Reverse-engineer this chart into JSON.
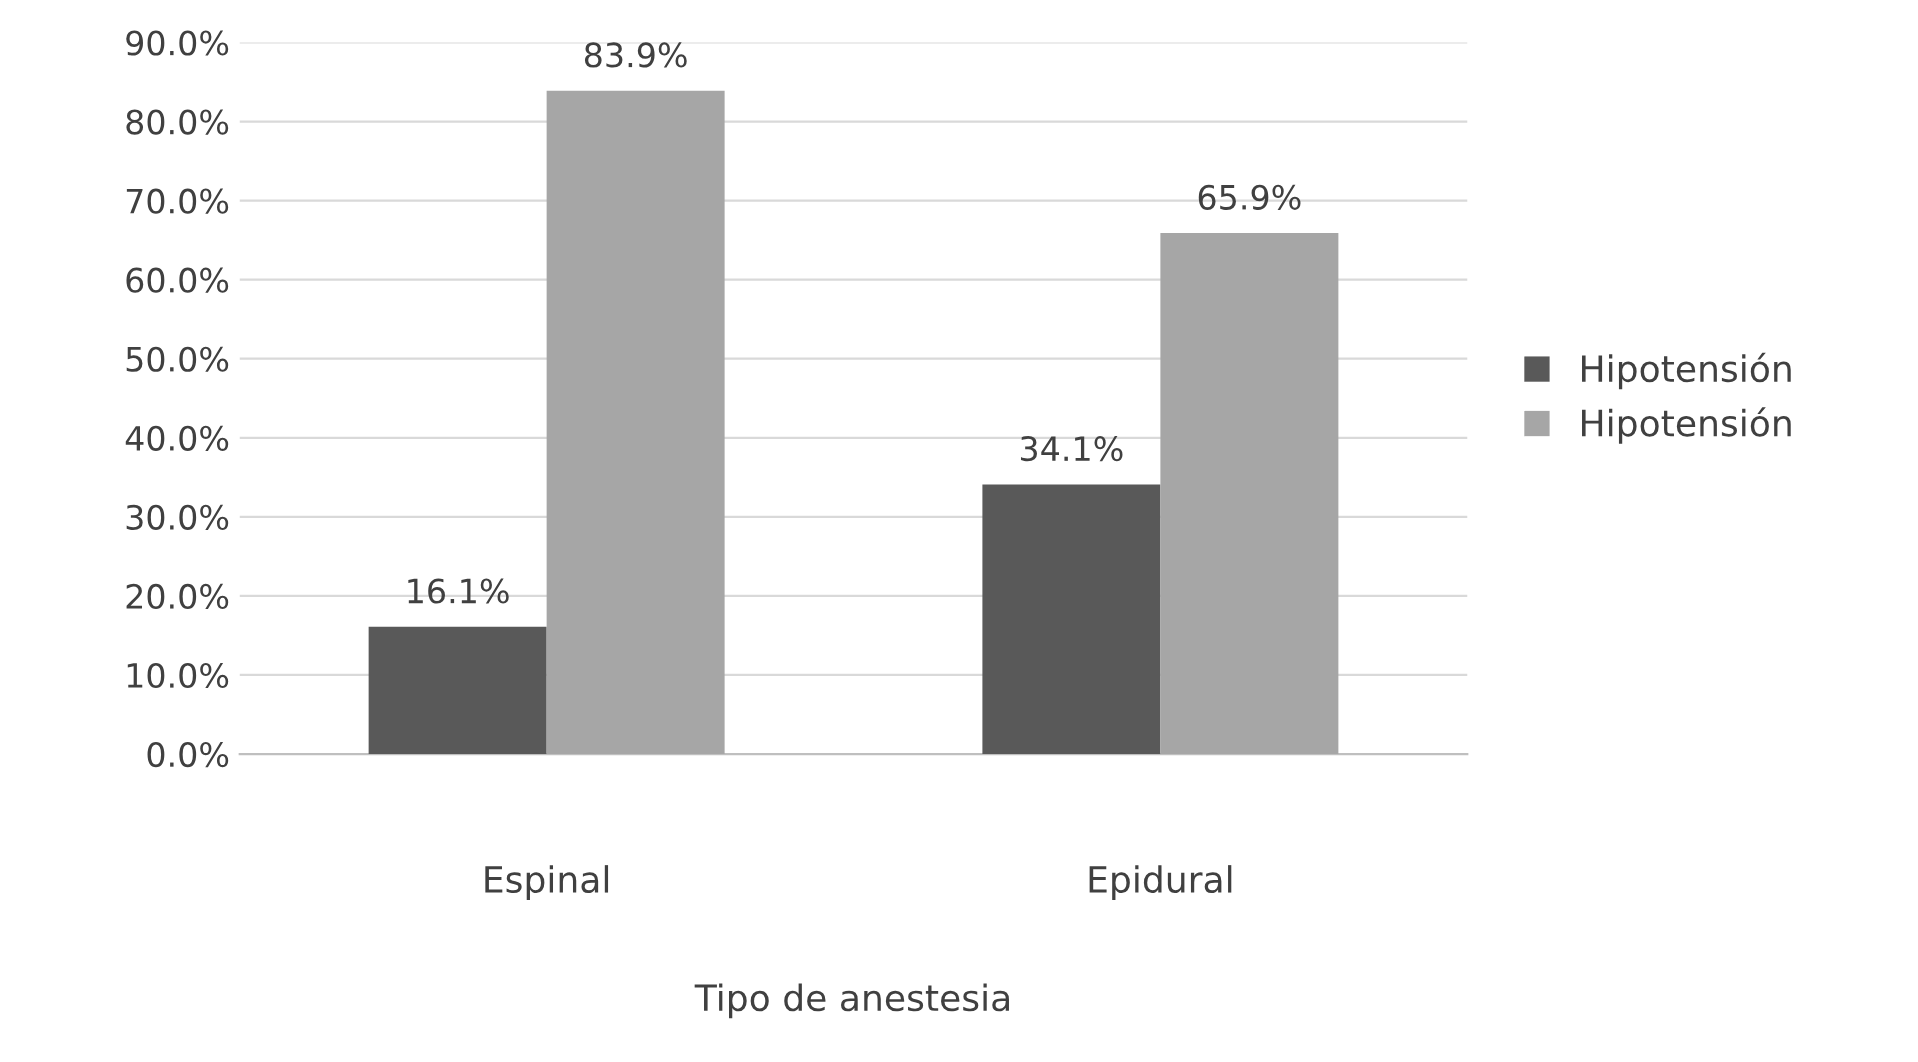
{
  "chart_data": {
    "type": "bar",
    "xlabel": "Tipo de anestesia",
    "categories": [
      "Espinal",
      "Epidural"
    ],
    "series": [
      {
        "name": "Hipotensión",
        "color": "#595959",
        "values": [
          16.1,
          34.1
        ],
        "value_labels": [
          "16.1%",
          "34.1%"
        ]
      },
      {
        "name": "Hipotensión",
        "color": "#a6a6a6",
        "values": [
          83.9,
          65.9
        ],
        "value_labels": [
          "83.9%",
          "65.9%"
        ]
      }
    ],
    "ylim": [
      0,
      90
    ],
    "yticks": [
      {
        "value": 0,
        "label": "0.0%"
      },
      {
        "value": 10,
        "label": "10.0%"
      },
      {
        "value": 20,
        "label": "20.0%"
      },
      {
        "value": 30,
        "label": "30.0%"
      },
      {
        "value": 40,
        "label": "40.0%"
      },
      {
        "value": 50,
        "label": "50.0%"
      },
      {
        "value": 60,
        "label": "60.0%"
      },
      {
        "value": 70,
        "label": "70.0%"
      },
      {
        "value": 80,
        "label": "80.0%"
      },
      {
        "value": 90,
        "label": "90.0%"
      }
    ],
    "grid": "y",
    "legend": "right"
  }
}
